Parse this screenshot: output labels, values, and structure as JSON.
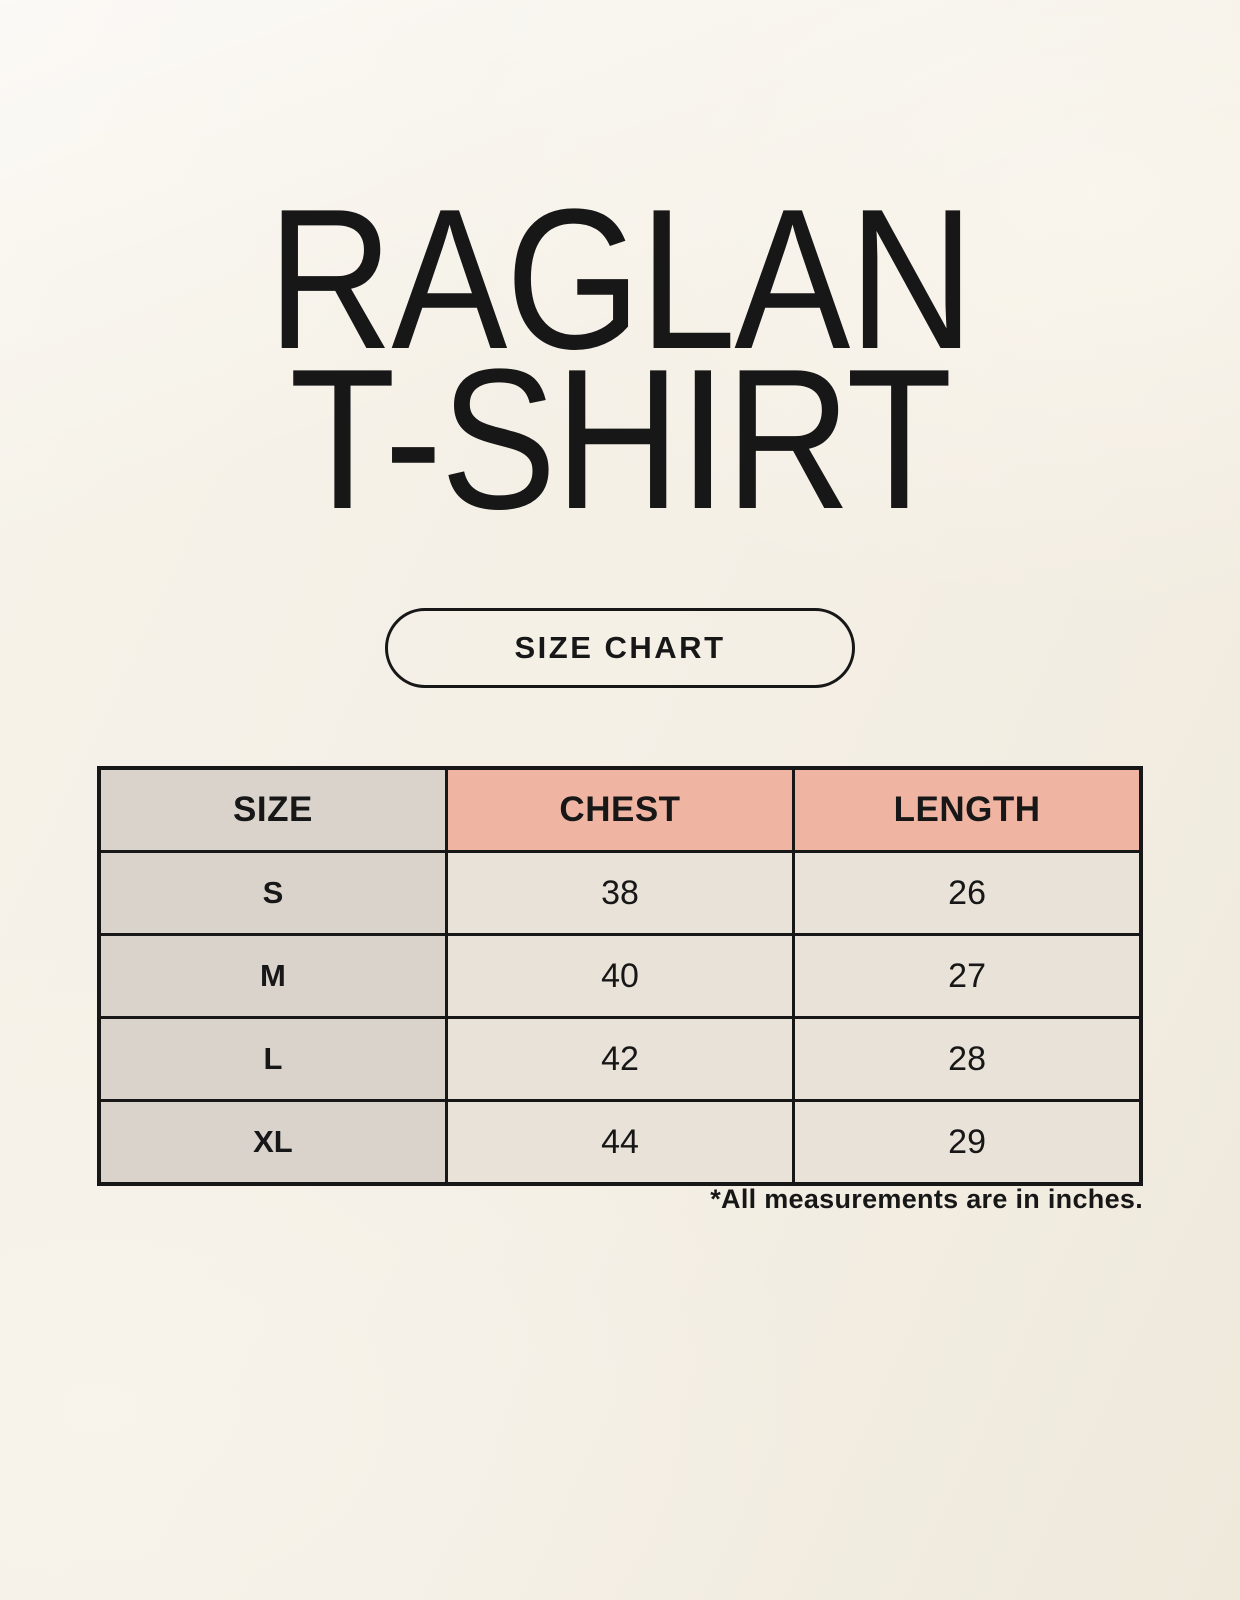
{
  "product": {
    "title_line1": "RAGLAN",
    "title_line2": "T-SHIRT"
  },
  "size_chart_button": {
    "label": "SIZE CHART"
  },
  "size_table": {
    "columns": [
      "SIZE",
      "CHEST",
      "LENGTH"
    ],
    "rows": [
      {
        "size": "S",
        "chest": "38",
        "length": "26"
      },
      {
        "size": "M",
        "chest": "40",
        "length": "27"
      },
      {
        "size": "L",
        "chest": "42",
        "length": "28"
      },
      {
        "size": "XL",
        "chest": "44",
        "length": "29"
      }
    ]
  },
  "footnote": "*All measurements are in inches.",
  "colors": {
    "background": "#f4f0e7",
    "ink": "#171717",
    "accent_salmon": "#f0b4a3",
    "cell_gray": "#d9d3cc",
    "cell_beige": "#e9e2d8"
  }
}
